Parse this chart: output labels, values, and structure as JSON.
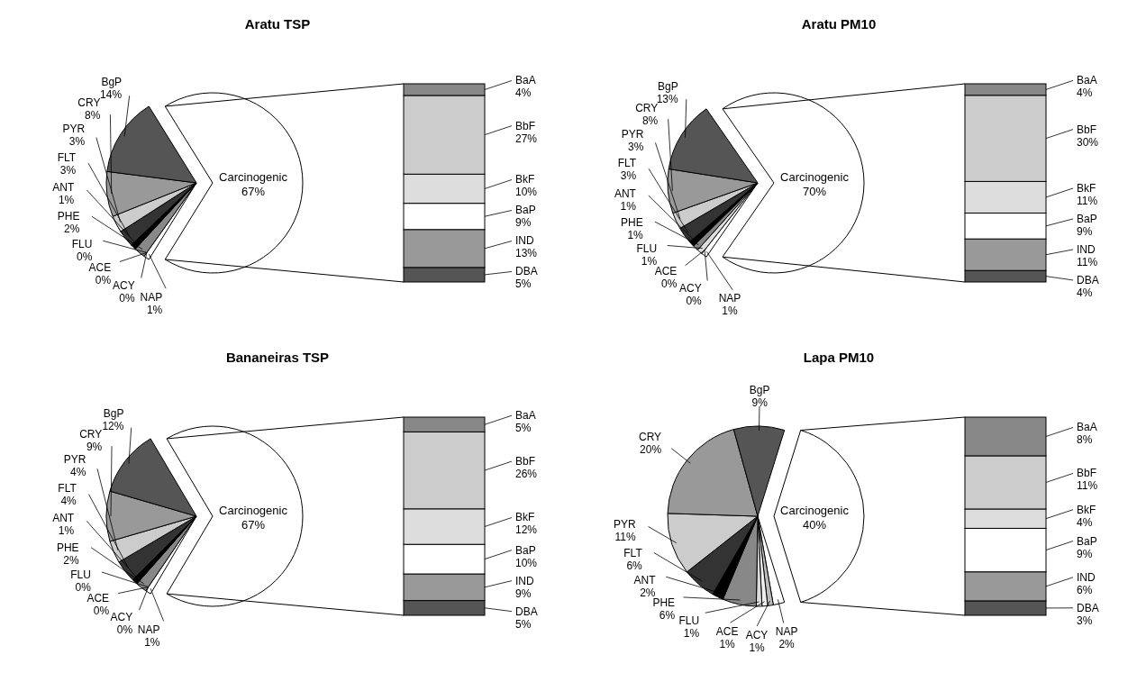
{
  "chart_data": [
    {
      "type": "pie",
      "title": "Aratu TSP",
      "categories": [
        "Carcinogenic",
        "NAP",
        "ACY",
        "ACE",
        "FLU",
        "PHE",
        "ANT",
        "FLT",
        "PYR",
        "CRY",
        "BgP"
      ],
      "values": [
        67,
        1,
        0,
        0,
        0,
        2,
        1,
        3,
        3,
        8,
        14
      ],
      "colors": [
        "#ffffff",
        "#ffffff",
        null,
        null,
        null,
        "#888888",
        "#000000",
        "#333333",
        "#cccccc",
        "#999999",
        "#555555"
      ],
      "value_labels": [
        "67%",
        "1%",
        "0%",
        "0%",
        "0%",
        "2%",
        "1%",
        "3%",
        "3%",
        "8%",
        "14%"
      ]
    },
    {
      "type": "bar",
      "stacked": true,
      "categories": [
        null
      ],
      "series": [
        {
          "name": "DBA",
          "color": "#555555",
          "values": [
            5
          ],
          "value_labels": [
            "5%"
          ]
        },
        {
          "name": "IND",
          "color": "#999999",
          "values": [
            13
          ],
          "value_labels": [
            "13%"
          ]
        },
        {
          "name": "BaP",
          "color": "#ffffff",
          "values": [
            9
          ],
          "value_labels": [
            "9%"
          ]
        },
        {
          "name": "BkF",
          "color": "#dddddd",
          "values": [
            10
          ],
          "value_labels": [
            "10%"
          ]
        },
        {
          "name": "BbF",
          "color": "#cccccc",
          "values": [
            27
          ],
          "value_labels": [
            "27%"
          ]
        },
        {
          "name": "BaA",
          "color": "#888888",
          "values": [
            4
          ],
          "value_labels": [
            "4%"
          ]
        }
      ]
    },
    {
      "type": "pie",
      "title": "Aratu PM10",
      "categories": [
        "Carcinogenic",
        "NAP",
        "ACY",
        "ACE",
        "FLU",
        "PHE",
        "ANT",
        "FLT",
        "PYR",
        "CRY",
        "BgP"
      ],
      "values": [
        70,
        1,
        0,
        0,
        1,
        1,
        1,
        3,
        3,
        8,
        13
      ],
      "colors": [
        "#ffffff",
        "#ffffff",
        null,
        null,
        "#dddddd",
        "#888888",
        "#000000",
        "#333333",
        "#cccccc",
        "#999999",
        "#555555"
      ],
      "value_labels": [
        "70%",
        "1%",
        "0%",
        "0%",
        "1%",
        "1%",
        "1%",
        "3%",
        "3%",
        "8%",
        "13%"
      ]
    },
    {
      "type": "bar",
      "stacked": true,
      "categories": [
        null
      ],
      "series": [
        {
          "name": "DBA",
          "color": "#555555",
          "values": [
            4
          ],
          "value_labels": [
            "4%"
          ]
        },
        {
          "name": "IND",
          "color": "#999999",
          "values": [
            11
          ],
          "value_labels": [
            "11%"
          ]
        },
        {
          "name": "BaP",
          "color": "#ffffff",
          "values": [
            9
          ],
          "value_labels": [
            "9%"
          ]
        },
        {
          "name": "BkF",
          "color": "#dddddd",
          "values": [
            11
          ],
          "value_labels": [
            "11%"
          ]
        },
        {
          "name": "BbF",
          "color": "#cccccc",
          "values": [
            30
          ],
          "value_labels": [
            "30%"
          ]
        },
        {
          "name": "BaA",
          "color": "#888888",
          "values": [
            4
          ],
          "value_labels": [
            "4%"
          ]
        }
      ]
    },
    {
      "type": "pie",
      "title": "Bananeiras TSP",
      "categories": [
        "Carcinogenic",
        "NAP",
        "ACY",
        "ACE",
        "FLU",
        "PHE",
        "ANT",
        "FLT",
        "PYR",
        "CRY",
        "BgP"
      ],
      "values": [
        67,
        1,
        0,
        0,
        0,
        2,
        1,
        4,
        4,
        9,
        12
      ],
      "colors": [
        "#ffffff",
        "#ffffff",
        null,
        null,
        null,
        "#888888",
        "#000000",
        "#333333",
        "#cccccc",
        "#999999",
        "#555555"
      ],
      "value_labels": [
        "67%",
        "1%",
        "0%",
        "0%",
        "0%",
        "2%",
        "1%",
        "4%",
        "4%",
        "9%",
        "12%"
      ]
    },
    {
      "type": "bar",
      "stacked": true,
      "categories": [
        null
      ],
      "series": [
        {
          "name": "DBA",
          "color": "#555555",
          "values": [
            5
          ],
          "value_labels": [
            "5%"
          ]
        },
        {
          "name": "IND",
          "color": "#999999",
          "values": [
            9
          ],
          "value_labels": [
            "9%"
          ]
        },
        {
          "name": "BaP",
          "color": "#ffffff",
          "values": [
            10
          ],
          "value_labels": [
            "10%"
          ]
        },
        {
          "name": "BkF",
          "color": "#dddddd",
          "values": [
            12
          ],
          "value_labels": [
            "12%"
          ]
        },
        {
          "name": "BbF",
          "color": "#cccccc",
          "values": [
            26
          ],
          "value_labels": [
            "26%"
          ]
        },
        {
          "name": "BaA",
          "color": "#888888",
          "values": [
            5
          ],
          "value_labels": [
            "5%"
          ]
        }
      ]
    },
    {
      "type": "pie",
      "title": "Lapa PM10",
      "categories": [
        "Carcinogenic",
        "NAP",
        "ACY",
        "ACE",
        "FLU",
        "PHE",
        "ANT",
        "FLT",
        "PYR",
        "CRY",
        "BgP"
      ],
      "values": [
        40,
        2,
        1,
        1,
        1,
        6,
        2,
        6,
        11,
        20,
        9
      ],
      "colors": [
        "#ffffff",
        "#ffffff",
        "#bbbbbb",
        "#eeeeee",
        "#dddddd",
        "#888888",
        "#000000",
        "#333333",
        "#cccccc",
        "#999999",
        "#555555"
      ],
      "value_labels": [
        "40%",
        "2%",
        "1%",
        "1%",
        "1%",
        "6%",
        "2%",
        "6%",
        "11%",
        "20%",
        "9%"
      ]
    },
    {
      "type": "bar",
      "stacked": true,
      "categories": [
        null
      ],
      "series": [
        {
          "name": "DBA",
          "color": "#555555",
          "values": [
            3
          ],
          "value_labels": [
            "3%"
          ]
        },
        {
          "name": "IND",
          "color": "#999999",
          "values": [
            6
          ],
          "value_labels": [
            "6%"
          ]
        },
        {
          "name": "BaP",
          "color": "#ffffff",
          "values": [
            9
          ],
          "value_labels": [
            "9%"
          ]
        },
        {
          "name": "BkF",
          "color": "#dddddd",
          "values": [
            4
          ],
          "value_labels": [
            "4%"
          ]
        },
        {
          "name": "BbF",
          "color": "#cccccc",
          "values": [
            11
          ],
          "value_labels": [
            "11%"
          ]
        },
        {
          "name": "BaA",
          "color": "#888888",
          "values": [
            8
          ],
          "value_labels": [
            "8%"
          ]
        }
      ]
    }
  ]
}
